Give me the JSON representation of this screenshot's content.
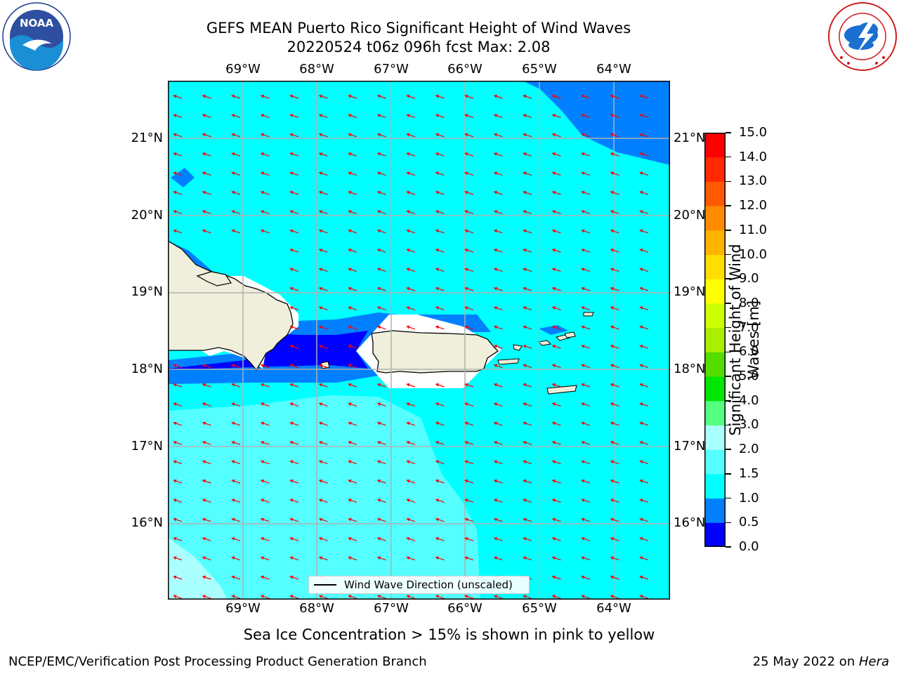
{
  "title_line1": "GEFS MEAN Puerto Rico Significant Height of Wind Waves",
  "title_line2": "20220524 t06z 096h fcst   Max: 2.08",
  "logos": {
    "left": "noaa-logo",
    "left_text": "NOAA",
    "right": "national-weather-service-logo"
  },
  "map": {
    "lon_labels": [
      "69°W",
      "68°W",
      "67°W",
      "66°W",
      "65°W",
      "64°W"
    ],
    "lat_labels": [
      "21°N",
      "20°N",
      "19°N",
      "18°N",
      "17°N",
      "16°N"
    ],
    "land_color": "#efefdc",
    "arrow_color": "#ff0000",
    "grid": true
  },
  "legend": {
    "label": "Wind Wave Direction (unscaled)",
    "placement": "lower-center"
  },
  "colorbar": {
    "title": "Significant Height of Wind Waves [m]",
    "levels": [
      0.0,
      0.5,
      1.0,
      1.5,
      2.0,
      3.0,
      4.0,
      5.0,
      6.0,
      7.0,
      8.0,
      9.0,
      10.0,
      11.0,
      12.0,
      13.0,
      14.0,
      15.0
    ],
    "tick_labels": [
      "0.0",
      "0.5",
      "1.0",
      "1.5",
      "2.0",
      "3.0",
      "4.0",
      "5.0",
      "6.0",
      "7.0",
      "8.0",
      "9.0",
      "10.0",
      "11.0",
      "12.0",
      "13.0",
      "14.0",
      "15.0"
    ],
    "colors": [
      "#0000ff",
      "#0080ff",
      "#00ffff",
      "#55ffff",
      "#aaffff",
      "#55ff80",
      "#00e600",
      "#55dd00",
      "#aaee00",
      "#ccff00",
      "#ffff00",
      "#ffdd00",
      "#ffb400",
      "#ff8c00",
      "#ff5a00",
      "#ff2800",
      "#ff0000"
    ]
  },
  "footer_note": "Sea Ice Concentration > 15% is shown in pink to yellow",
  "credit_left": "NCEP/EMC/Verification Post Processing Product Generation Branch",
  "credit_right_prefix": "25 May 2022 on ",
  "credit_right_host": "Hera"
}
